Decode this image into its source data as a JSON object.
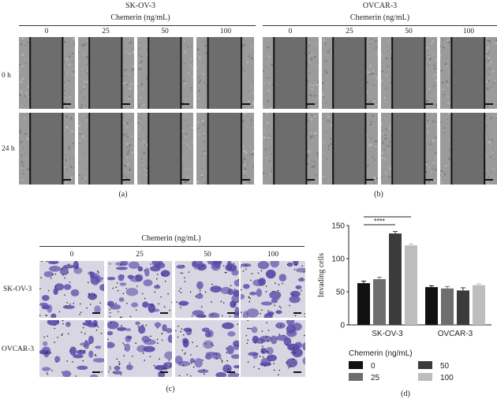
{
  "panel_a": {
    "cell_line": "SK-OV-3",
    "treatment": "Chemerin (ng/mL)",
    "columns": [
      "0",
      "25",
      "50",
      "100"
    ],
    "rows": [
      "0 h",
      "24 h"
    ],
    "caption": "(a)"
  },
  "panel_b": {
    "cell_line": "OVCAR-3",
    "treatment": "Chemerin (ng/mL)",
    "columns": [
      "0",
      "25",
      "50",
      "100"
    ],
    "caption": "(b)"
  },
  "panel_c": {
    "treatment": "Chemerin (ng/mL)",
    "columns": [
      "0",
      "25",
      "50",
      "100"
    ],
    "rows": [
      "SK-OV-3",
      "OVCAR-3"
    ],
    "caption": "(c)"
  },
  "panel_d": {
    "caption": "(d)",
    "significance": [
      "****",
      "****"
    ],
    "legend_title": "Chemerin (ng/mL)"
  },
  "colors": {
    "scratch_gray": "#6d6d6d",
    "cell_gray": "#9b9b9b",
    "stain_violet": "#5a4aa8",
    "bar_0": "#111111",
    "bar_25": "#6e6e6e",
    "bar_50": "#3b3b3b",
    "bar_100": "#bdbdbd"
  },
  "chart_data": {
    "type": "bar",
    "ylabel": "Invading cells",
    "categories": [
      "SK-OV-3",
      "OVCAR-3"
    ],
    "ylim": [
      0,
      150
    ],
    "yticks": [
      0,
      50,
      100,
      150
    ],
    "series": [
      {
        "name": "0",
        "values": [
          63,
          57
        ],
        "errors": [
          3,
          2
        ]
      },
      {
        "name": "25",
        "values": [
          69,
          55
        ],
        "errors": [
          3,
          3
        ]
      },
      {
        "name": "50",
        "values": [
          138,
          52
        ],
        "errors": [
          3,
          4
        ]
      },
      {
        "name": "100",
        "values": [
          120,
          60
        ],
        "errors": [
          2,
          2
        ]
      }
    ],
    "legend_title": "Chemerin (ng/mL)",
    "legend_position": "bottom"
  }
}
